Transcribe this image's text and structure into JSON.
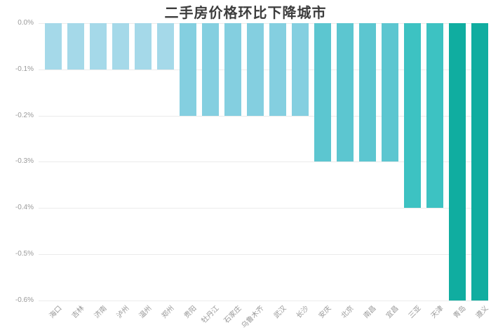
{
  "title": "二手房价格环比下降城市",
  "chart_data": {
    "type": "bar",
    "title": "二手房价格环比下降城市",
    "categories": [
      "海口",
      "吉林",
      "济南",
      "泸州",
      "温州",
      "郑州",
      "贵阳",
      "牡丹江",
      "石家庄",
      "乌鲁木齐",
      "武汉",
      "长沙",
      "安庆",
      "北京",
      "南昌",
      "宜昌",
      "三亚",
      "天津",
      "青岛",
      "遵义"
    ],
    "values": [
      -0.1,
      -0.1,
      -0.1,
      -0.1,
      -0.1,
      -0.1,
      -0.2,
      -0.2,
      -0.2,
      -0.2,
      -0.2,
      -0.2,
      -0.3,
      -0.3,
      -0.3,
      -0.3,
      -0.4,
      -0.4,
      -0.6,
      -0.6
    ],
    "value_unit": "%",
    "xlabel": "",
    "ylabel": "",
    "ylim": [
      -0.6,
      0
    ],
    "y_ticks": [
      "0.0%",
      "-0.1%",
      "-0.2%",
      "-0.3%",
      "-0.4%",
      "-0.5%",
      "-0.6%"
    ],
    "grid": true,
    "legend": "none",
    "bar_colors": [
      "#a5d9e9",
      "#a5d9e9",
      "#a5d9e9",
      "#a5d9e9",
      "#a5d9e9",
      "#a5d9e9",
      "#84cfe0",
      "#84cfe0",
      "#84cfe0",
      "#84cfe0",
      "#84cfe0",
      "#84cfe0",
      "#5cc6d0",
      "#5cc6d0",
      "#5cc6d0",
      "#5cc6d0",
      "#3dc2c2",
      "#3dc2c2",
      "#10ada0",
      "#10ada0"
    ],
    "color_by_value": {
      "-0.1": "#a5d9e9",
      "-0.2": "#84cfe0",
      "-0.3": "#5cc6d0",
      "-0.4": "#3dc2c2",
      "-0.6": "#10ada0"
    }
  },
  "style": {
    "background": "#ffffff",
    "title_color": "#3d3d3d",
    "axis_tick_color": "#999999",
    "gridline_color": "#ebebeb"
  }
}
